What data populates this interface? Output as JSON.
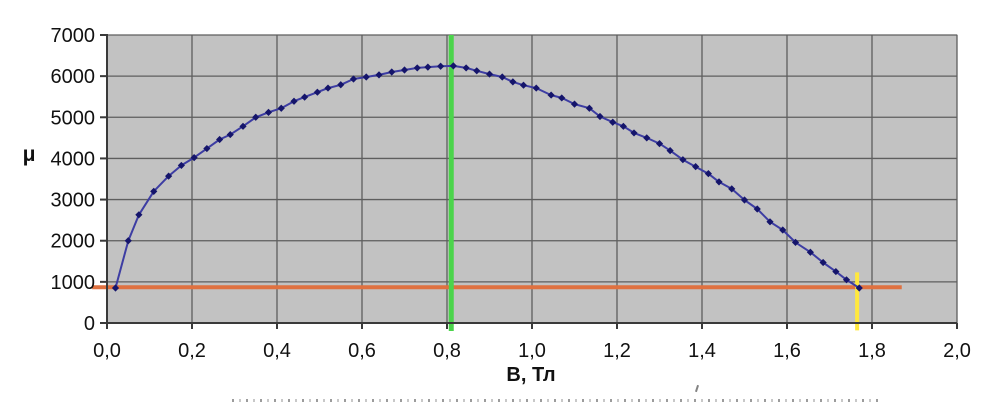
{
  "chart_data": {
    "type": "line",
    "title": "",
    "xlabel": "В, Тл",
    "ylabel": "μ",
    "xlim": [
      0,
      2
    ],
    "ylim": [
      0,
      7000
    ],
    "grid": true,
    "legend": "none",
    "plot_bg": "#C2C2C2",
    "grid_color": "#5E5E5E",
    "axis_color": "#3A3A3A",
    "outer_bg": "#FFFFFF",
    "xticks": [
      0.0,
      0.2,
      0.4,
      0.6,
      0.8,
      1.0,
      1.2,
      1.4,
      1.6,
      1.8,
      2.0
    ],
    "xtick_labels": [
      "0,0",
      "0,2",
      "0,4",
      "0,6",
      "0,8",
      "1,0",
      "1,2",
      "1,4",
      "1,6",
      "1,8",
      "2,0"
    ],
    "yticks": [
      0,
      1000,
      2000,
      3000,
      4000,
      5000,
      6000,
      7000
    ],
    "ytick_labels": [
      "0",
      "1000",
      "2000",
      "3000",
      "4000",
      "5000",
      "6000",
      "7000"
    ],
    "series": [
      {
        "name": "permeability-curve",
        "line_color": "#3D3DA3",
        "marker_color": "#15156B",
        "marker": "diamond",
        "x": [
          0.02,
          0.05,
          0.075,
          0.11,
          0.145,
          0.175,
          0.205,
          0.235,
          0.265,
          0.29,
          0.32,
          0.35,
          0.38,
          0.41,
          0.44,
          0.465,
          0.495,
          0.52,
          0.55,
          0.58,
          0.61,
          0.64,
          0.67,
          0.7,
          0.73,
          0.755,
          0.785,
          0.815,
          0.845,
          0.87,
          0.9,
          0.93,
          0.955,
          0.98,
          1.01,
          1.045,
          1.07,
          1.1,
          1.135,
          1.16,
          1.19,
          1.215,
          1.24,
          1.27,
          1.3,
          1.325,
          1.355,
          1.385,
          1.415,
          1.44,
          1.47,
          1.5,
          1.53,
          1.56,
          1.59,
          1.62,
          1.655,
          1.685,
          1.715,
          1.74,
          1.77
        ],
        "y": [
          850,
          2000,
          2630,
          3200,
          3570,
          3830,
          4020,
          4240,
          4460,
          4580,
          4780,
          5000,
          5120,
          5220,
          5390,
          5490,
          5610,
          5710,
          5790,
          5930,
          5980,
          6030,
          6100,
          6150,
          6200,
          6220,
          6240,
          6250,
          6200,
          6130,
          6050,
          5980,
          5860,
          5780,
          5710,
          5540,
          5470,
          5320,
          5220,
          5020,
          4880,
          4780,
          4620,
          4500,
          4360,
          4190,
          3970,
          3800,
          3630,
          3430,
          3260,
          2990,
          2770,
          2460,
          2260,
          1960,
          1720,
          1470,
          1250,
          1050,
          850
        ]
      }
    ],
    "annotations": [
      {
        "type": "vline",
        "name": "peak-marker-line",
        "x": 0.81,
        "color": "#4BD44B",
        "width": 5
      },
      {
        "type": "vline",
        "name": "saturation-marker-line",
        "x": 1.765,
        "y_from": -180,
        "y_to": 1230,
        "color": "#FFE83D",
        "width": 4
      },
      {
        "type": "hline",
        "name": "initial-permeability-level-line",
        "y": 870,
        "x_from": -0.035,
        "x_to": 1.87,
        "color": "#DF7140",
        "width": 4
      }
    ]
  }
}
